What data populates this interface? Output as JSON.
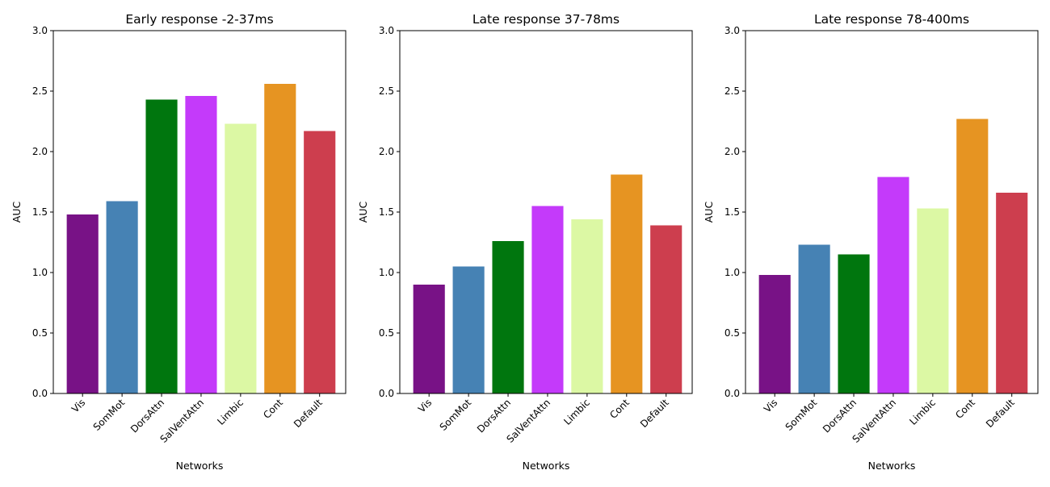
{
  "chart_data": [
    {
      "type": "bar",
      "title": "Early response -2-37ms",
      "xlabel": "Networks",
      "ylabel": "AUC",
      "ylim": [
        0,
        3.0
      ],
      "yticks": [
        "0.0",
        "0.5",
        "1.0",
        "1.5",
        "2.0",
        "2.5",
        "3.0"
      ],
      "categories": [
        "Vis",
        "SomMot",
        "DorsAttn",
        "SalVentAttn",
        "Limbic",
        "Cont",
        "Default"
      ],
      "values": [
        1.48,
        1.59,
        2.43,
        2.46,
        2.23,
        2.56,
        2.17
      ],
      "grid": false
    },
    {
      "type": "bar",
      "title": "Late response 37-78ms",
      "xlabel": "Networks",
      "ylabel": "AUC",
      "ylim": [
        0,
        3.0
      ],
      "yticks": [
        "0.0",
        "0.5",
        "1.0",
        "1.5",
        "2.0",
        "2.5",
        "3.0"
      ],
      "categories": [
        "Vis",
        "SomMot",
        "DorsAttn",
        "SalVentAttn",
        "Limbic",
        "Cont",
        "Default"
      ],
      "values": [
        0.9,
        1.05,
        1.26,
        1.55,
        1.44,
        1.81,
        1.39
      ],
      "grid": false
    },
    {
      "type": "bar",
      "title": "Late response 78-400ms",
      "xlabel": "Networks",
      "ylabel": "AUC",
      "ylim": [
        0,
        3.0
      ],
      "yticks": [
        "0.0",
        "0.5",
        "1.0",
        "1.5",
        "2.0",
        "2.5",
        "3.0"
      ],
      "categories": [
        "Vis",
        "SomMot",
        "DorsAttn",
        "SalVentAttn",
        "Limbic",
        "Cont",
        "Default"
      ],
      "values": [
        0.98,
        1.23,
        1.15,
        1.79,
        1.53,
        2.27,
        1.66
      ],
      "grid": false
    }
  ],
  "colors": [
    "#781286",
    "#4682B4",
    "#00760E",
    "#C43AFA",
    "#DCF8A4",
    "#E69422",
    "#CD3E4E"
  ]
}
